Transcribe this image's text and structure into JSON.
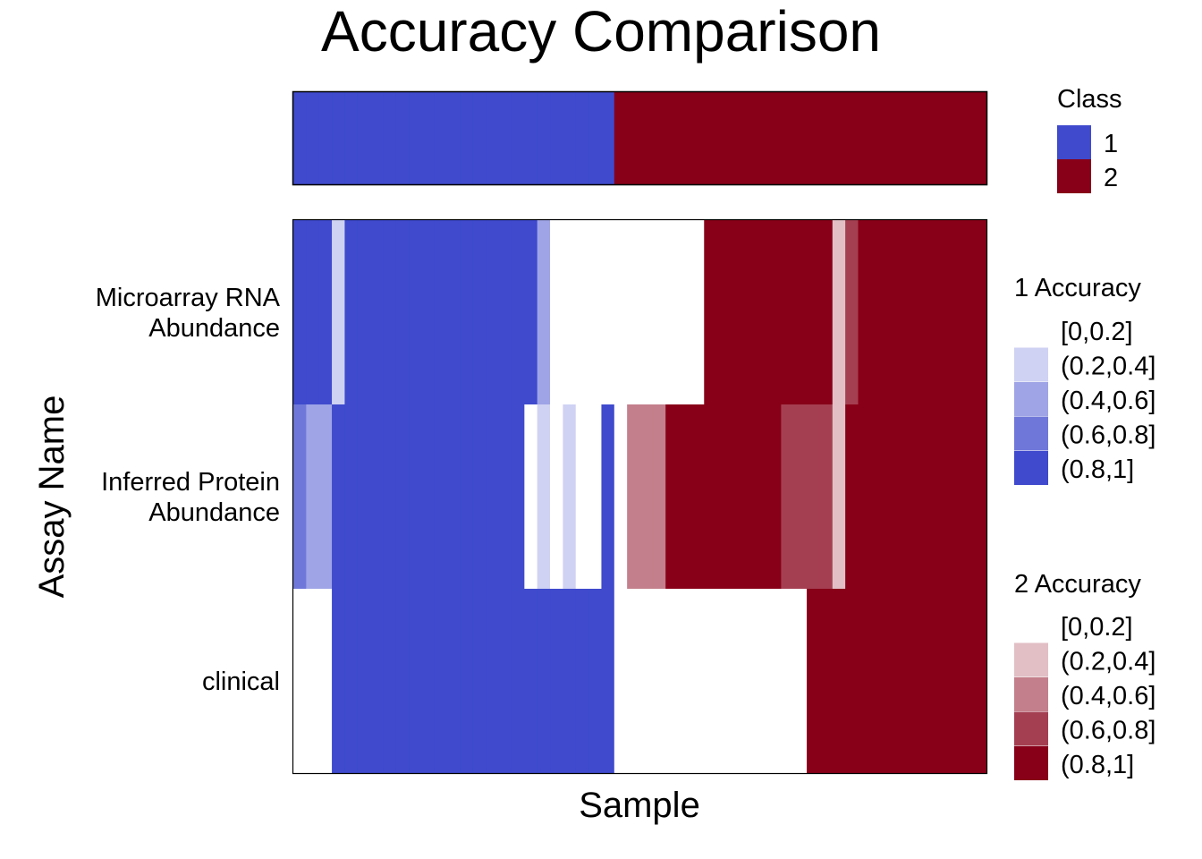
{
  "chart_data": {
    "type": "heatmap",
    "title": "Accuracy Comparison",
    "xlabel": "Sample",
    "ylabel": "Assay Name",
    "n_samples": 54,
    "assays": [
      "Microarray RNA\nAbundance",
      "Inferred Protein\nAbundance",
      "clinical"
    ],
    "class_legend": {
      "title": "Class",
      "levels": [
        {
          "label": "1",
          "color": "#3F4ACD"
        },
        {
          "label": "2",
          "color": "#880018"
        }
      ]
    },
    "accuracy_legends": [
      {
        "title": "1 Accuracy",
        "bins": [
          "[0,0.2]",
          "(0.2,0.4]",
          "(0.4,0.6]",
          "(0.6,0.8]",
          "(0.8,1]"
        ],
        "colors": [
          "#FFFFFF",
          "#CFD2F2",
          "#9FA4E6",
          "#6F77D9",
          "#3F4ACD"
        ]
      },
      {
        "title": "2 Accuracy",
        "bins": [
          "[0,0.2]",
          "(0.2,0.4]",
          "(0.4,0.6]",
          "(0.6,0.8]",
          "(0.8,1]"
        ],
        "colors": [
          "#FFFFFF",
          "#E1BFC5",
          "#C37F8B",
          "#A43F51",
          "#880018"
        ]
      }
    ],
    "sample_class": [
      1,
      1,
      1,
      1,
      1,
      1,
      1,
      1,
      1,
      1,
      1,
      1,
      1,
      1,
      1,
      1,
      1,
      1,
      1,
      1,
      1,
      1,
      1,
      1,
      1,
      2,
      2,
      2,
      2,
      2,
      2,
      2,
      2,
      2,
      2,
      2,
      2,
      2,
      2,
      2,
      2,
      2,
      2,
      2,
      2,
      2,
      2,
      2,
      2,
      2,
      2,
      2,
      2,
      2
    ],
    "accuracy_bins": [
      [
        4,
        4,
        4,
        1,
        4,
        4,
        4,
        4,
        4,
        4,
        4,
        4,
        4,
        4,
        4,
        4,
        4,
        4,
        4,
        2,
        0,
        0,
        0,
        0,
        0,
        0,
        0,
        0,
        0,
        0,
        0,
        0,
        4,
        4,
        4,
        4,
        4,
        4,
        4,
        4,
        4,
        4,
        1,
        3,
        4,
        4,
        4,
        4,
        4,
        4,
        4,
        4,
        4,
        4
      ],
      [
        3,
        2,
        2,
        4,
        4,
        4,
        4,
        4,
        4,
        4,
        4,
        4,
        4,
        4,
        4,
        4,
        4,
        4,
        0,
        1,
        0,
        1,
        0,
        0,
        4,
        0,
        2,
        2,
        2,
        4,
        4,
        4,
        4,
        4,
        4,
        4,
        4,
        4,
        3,
        3,
        3,
        3,
        1,
        4,
        4,
        4,
        4,
        4,
        4,
        4,
        4,
        4,
        4,
        4
      ],
      [
        0,
        0,
        0,
        4,
        4,
        4,
        4,
        4,
        4,
        4,
        4,
        4,
        4,
        4,
        4,
        4,
        4,
        4,
        4,
        4,
        4,
        4,
        4,
        4,
        4,
        0,
        0,
        0,
        0,
        0,
        0,
        0,
        0,
        0,
        0,
        0,
        0,
        0,
        0,
        0,
        4,
        4,
        4,
        4,
        4,
        4,
        4,
        4,
        4,
        4,
        4,
        4,
        4,
        4
      ]
    ]
  }
}
